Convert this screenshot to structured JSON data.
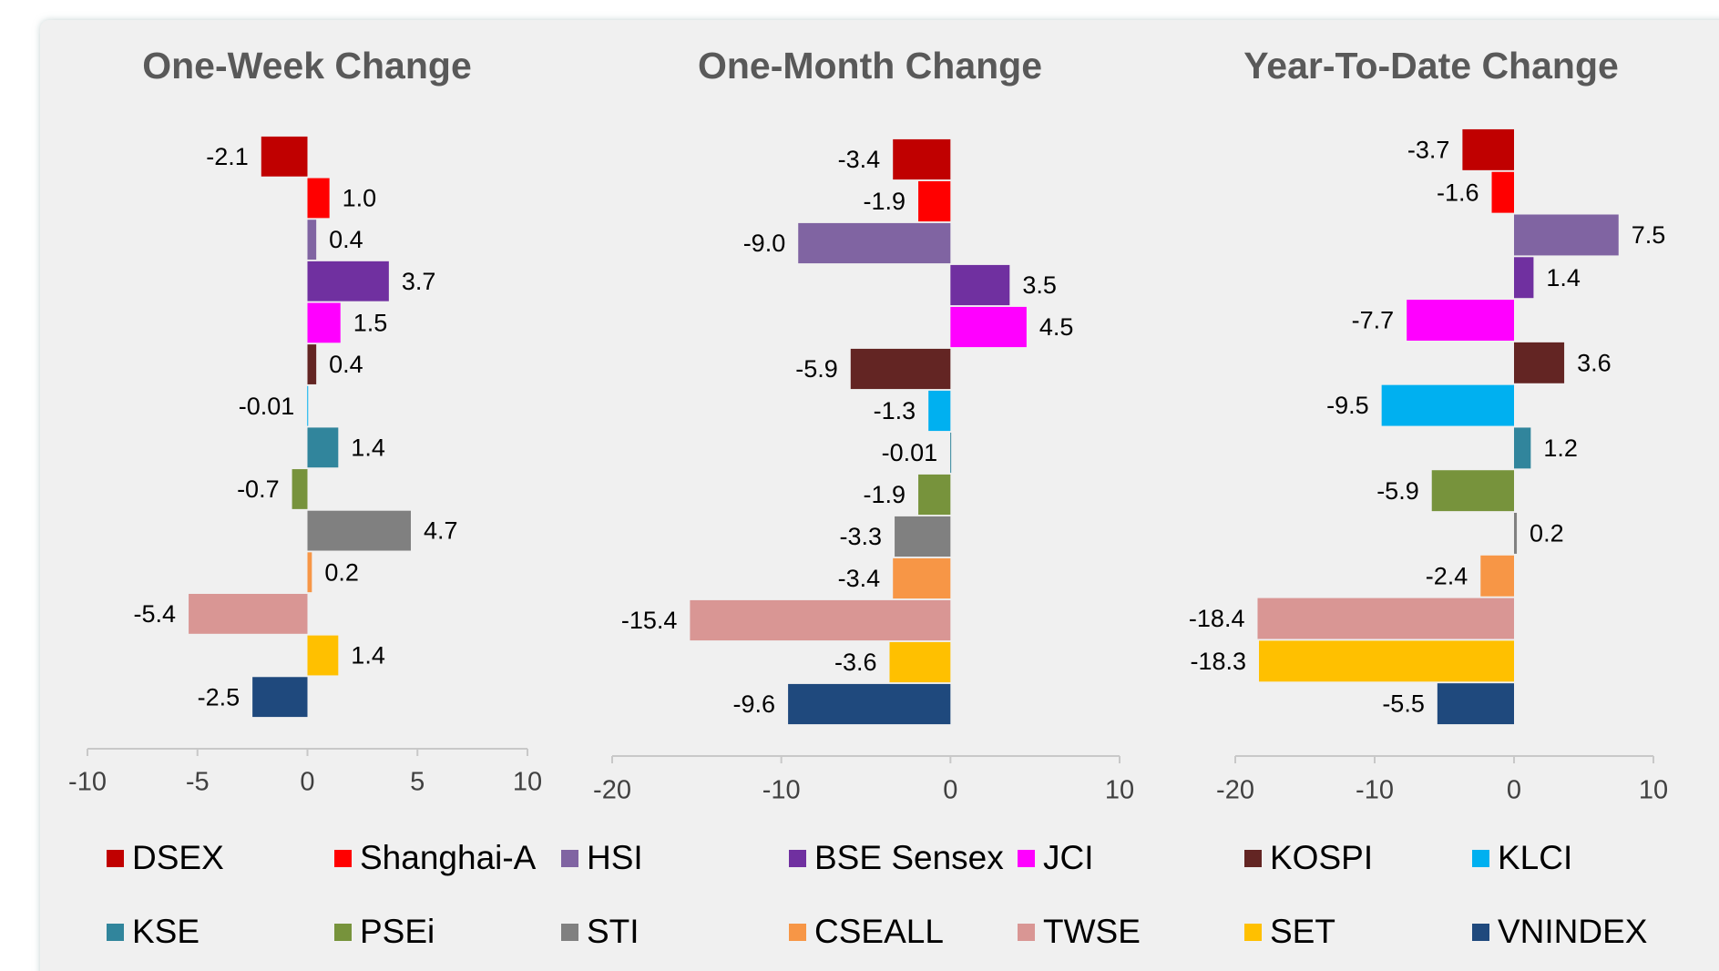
{
  "legend": {
    "items": [
      {
        "name": "DSEX",
        "color": "#c00000"
      },
      {
        "name": "Shanghai-A",
        "color": "#ff0000"
      },
      {
        "name": "HSI",
        "color": "#8064a2"
      },
      {
        "name": "BSE Sensex",
        "color": "#7030a0"
      },
      {
        "name": "JCI",
        "color": "#ff00ff"
      },
      {
        "name": "KOSPI",
        "color": "#632523"
      },
      {
        "name": "KLCI",
        "color": "#00b0f0"
      },
      {
        "name": "KSE",
        "color": "#31859c"
      },
      {
        "name": "PSEi",
        "color": "#77933c"
      },
      {
        "name": "STI",
        "color": "#808080"
      },
      {
        "name": "CSEALL",
        "color": "#f79646"
      },
      {
        "name": "TWSE",
        "color": "#d99694"
      },
      {
        "name": "SET",
        "color": "#ffc000"
      },
      {
        "name": "VNINDEX",
        "color": "#1f497d"
      }
    ]
  },
  "chart_data": [
    {
      "type": "bar",
      "orientation": "horizontal",
      "title": "One-Week Change",
      "values": [
        -2.1,
        1.0,
        0.4,
        3.7,
        1.5,
        0.4,
        -0.01,
        1.4,
        -0.7,
        4.7,
        0.2,
        -5.4,
        1.4,
        -2.5
      ],
      "value_labels": [
        "-2.1",
        "1.0",
        "0.4",
        "3.7",
        "1.5",
        "0.4",
        "-0.01",
        "1.4",
        "-0.7",
        "4.7",
        "0.2",
        "-5.4",
        "1.4",
        "-2.5"
      ],
      "xlim": [
        -10,
        10
      ],
      "xticks": [
        -10,
        -5,
        0,
        5,
        10
      ]
    },
    {
      "type": "bar",
      "orientation": "horizontal",
      "title": "One-Month Change",
      "values": [
        -3.4,
        -1.9,
        -9.0,
        3.5,
        4.5,
        -5.9,
        -1.3,
        -0.01,
        -1.9,
        -3.3,
        -3.4,
        -15.4,
        -3.6,
        -9.6
      ],
      "value_labels": [
        "-3.4",
        "-1.9",
        "-9.0",
        "3.5",
        "4.5",
        "-5.9",
        "-1.3",
        "-0.01",
        "-1.9",
        "-3.3",
        "-3.4",
        "-15.4",
        "-3.6",
        "-9.6"
      ],
      "xlim": [
        -20,
        10
      ],
      "xticks": [
        -20,
        -10,
        0,
        10
      ]
    },
    {
      "type": "bar",
      "orientation": "horizontal",
      "title": "Year-To-Date Change",
      "values": [
        -3.7,
        -1.6,
        7.5,
        1.4,
        -7.7,
        3.6,
        -9.5,
        1.2,
        -5.9,
        0.2,
        -2.4,
        -18.4,
        -18.3,
        -5.5
      ],
      "value_labels": [
        "-3.7",
        "-1.6",
        "7.5",
        "1.4",
        "-7.7",
        "3.6",
        "-9.5",
        "1.2",
        "-5.9",
        "0.2",
        "-2.4",
        "-18.4",
        "-18.3",
        "-5.5"
      ],
      "xlim": [
        -20,
        10
      ],
      "xticks": [
        -20,
        -10,
        0,
        10
      ]
    }
  ]
}
